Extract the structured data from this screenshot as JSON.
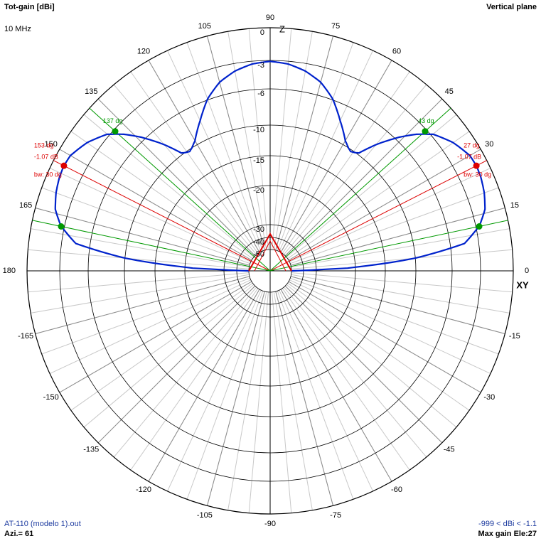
{
  "header": {
    "title": "Tot-gain [dBi]",
    "frequency": "10 MHz",
    "plane": "Vertical plane"
  },
  "footer": {
    "filename": "AT-110 (modelo 1).out",
    "azimuth": "Azi.= 61",
    "range": "-999 < dBi < -1.1",
    "max_gain": "Max gain Ele:27"
  },
  "colors": {
    "pattern": "#0022cc",
    "beam_marker": "#dd0000",
    "minus3db_marker": "#009900",
    "grid": "#c8c8c8",
    "ring": "#000000",
    "axis": "#000000"
  },
  "chart_data": {
    "type": "polar",
    "title": "Tot-gain [dBi]",
    "angle_unit": "deg",
    "angle_labels": [
      {
        "angle": 0,
        "text": "0"
      },
      {
        "angle": 15,
        "text": "15"
      },
      {
        "angle": 30,
        "text": "30"
      },
      {
        "angle": 45,
        "text": "45"
      },
      {
        "angle": 60,
        "text": "60"
      },
      {
        "angle": 75,
        "text": "75"
      },
      {
        "angle": 90,
        "text": "90"
      },
      {
        "angle": 105,
        "text": "105"
      },
      {
        "angle": 120,
        "text": "120"
      },
      {
        "angle": 135,
        "text": "135"
      },
      {
        "angle": 150,
        "text": "150"
      },
      {
        "angle": 165,
        "text": "165"
      },
      {
        "angle": 180,
        "text": "180"
      },
      {
        "angle": -165,
        "text": "-165"
      },
      {
        "angle": -150,
        "text": "-150"
      },
      {
        "angle": -135,
        "text": "-135"
      },
      {
        "angle": -120,
        "text": "-120"
      },
      {
        "angle": -105,
        "text": "-105"
      },
      {
        "angle": -90,
        "text": "-90"
      },
      {
        "angle": -75,
        "text": "-75"
      },
      {
        "angle": -60,
        "text": "-60"
      },
      {
        "angle": -45,
        "text": "-45"
      },
      {
        "angle": -30,
        "text": "-30"
      },
      {
        "angle": -15,
        "text": "-15"
      }
    ],
    "radial_rings_db": [
      0,
      -3,
      -6,
      -10,
      -15,
      -20,
      -30,
      -40,
      -50
    ],
    "radial_labels": [
      "0",
      "-3",
      "-6",
      "-10",
      "-15",
      "-20",
      "-30",
      "-40",
      "-50"
    ],
    "axis_labels": {
      "vertical": "Z",
      "horizontal": "XY"
    },
    "pattern": {
      "name": "Tot-gain",
      "elevation_deg": [
        0,
        2,
        5,
        8,
        12,
        16,
        20,
        24,
        27,
        30,
        35,
        40,
        43,
        46,
        50,
        53,
        56,
        60,
        65,
        70,
        75,
        80,
        85,
        90
      ],
      "gain_dbi": [
        -50,
        -22,
        -10,
        -4.5,
        -2.7,
        -1.8,
        -1.4,
        -1.15,
        -1.07,
        -1.15,
        -1.8,
        -2.8,
        -4.07,
        -5.6,
        -7.9,
        -9.8,
        -10.3,
        -9.5,
        -7.8,
        -5.9,
        -4.6,
        -3.8,
        -3.3,
        -3.1
      ],
      "symmetric_about_vertical": true
    },
    "markers": [
      {
        "kind": "max",
        "angle": 27,
        "text_angle": "27 dg",
        "text_gain": "-1.07 dB",
        "text_bw": "bw: 30 dg"
      },
      {
        "kind": "max",
        "angle": 153,
        "text_angle": "153 dg",
        "text_gain": "-1.07 dB",
        "text_bw": "bw: 30 dg"
      },
      {
        "kind": "minus3",
        "angle": 12,
        "gain": -2.7
      },
      {
        "kind": "minus3",
        "angle": 42,
        "gain": -3.2
      },
      {
        "kind": "minus3",
        "angle": 138,
        "gain": -3.2
      },
      {
        "kind": "minus3",
        "angle": 168,
        "gain": -2.7
      }
    ],
    "marker_labels": [
      {
        "angle": 43,
        "text": "43 dg"
      },
      {
        "angle": 137,
        "text": "137 dg"
      }
    ],
    "grid": true
  }
}
